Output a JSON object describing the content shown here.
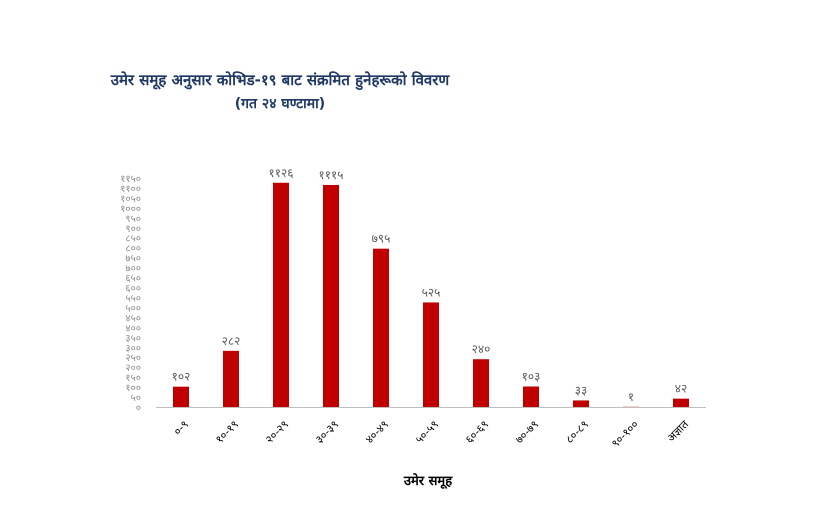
{
  "chart_data": {
    "type": "bar",
    "title": "उमेर समूह अनुसार कोभिड-१९ बाट संक्रमित हुनेहरूको विवरण",
    "subtitle": "(गत २४ घण्टामा)",
    "xlabel": "उमेर समूह",
    "ylabel": "",
    "categories": [
      "०-९",
      "१०-१९",
      "२०-२९",
      "३०-३९",
      "४०-४९",
      "५०-५९",
      "६०-६९",
      "७०-७९",
      "८०-८९",
      "९०-१००",
      "अज्ञात"
    ],
    "values": [
      102,
      282,
      1126,
      1115,
      795,
      525,
      240,
      103,
      33,
      1,
      42
    ],
    "value_labels": [
      "१०२",
      "२८२",
      "११२६",
      "१११५",
      "७९५",
      "५२५",
      "२४०",
      "१०३",
      "३३",
      "१",
      "४२"
    ],
    "ylim": [
      0,
      1150
    ],
    "y_ticks": [
      0,
      50,
      100,
      150,
      200,
      250,
      300,
      350,
      400,
      450,
      500,
      550,
      600,
      650,
      700,
      750,
      800,
      850,
      900,
      950,
      1000,
      1050,
      1100,
      1150
    ],
    "y_tick_labels": [
      "०",
      "५०",
      "१००",
      "१५०",
      "२००",
      "२५०",
      "३००",
      "३५०",
      "४००",
      "४५०",
      "५००",
      "५५०",
      "६००",
      "६५०",
      "७००",
      "७५०",
      "८००",
      "८५०",
      "९००",
      "९५०",
      "१०००",
      "१०५०",
      "११००",
      "११५०"
    ],
    "grid": false,
    "legend": "none",
    "bar_color": "#c00000"
  }
}
